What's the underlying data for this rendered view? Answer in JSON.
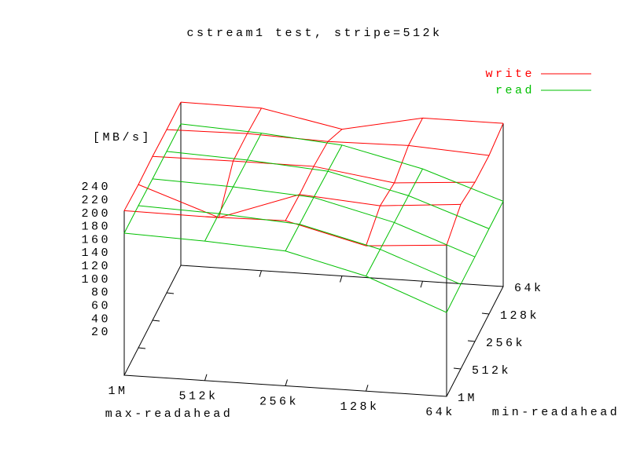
{
  "chart_data": {
    "type": "surface3d",
    "title": "cstream1 test, stripe=512k",
    "zlabel": "[MB/s]",
    "xlabel": "max-readahead",
    "ylabel": "min-readahead",
    "x": [
      "1M",
      "512k",
      "256k",
      "128k",
      "64k"
    ],
    "y": [
      "1M",
      "512k",
      "256k",
      "128k",
      "64k"
    ],
    "zticks": [
      20,
      40,
      60,
      80,
      100,
      120,
      140,
      160,
      180,
      200,
      220,
      240
    ],
    "legend": "top-right",
    "series": [
      {
        "name": "write",
        "color": "#ff0000",
        "values": [
          [
            204,
            203,
            205,
            175,
            184
          ],
          [
            202,
            160,
            203,
            194,
            204
          ],
          [
            203,
            204,
            204,
            187,
            196
          ],
          [
            202,
            204,
            200,
            202,
            195
          ],
          [
            202,
            201,
            177,
            202,
            202
          ]
        ]
      },
      {
        "name": "read",
        "color": "#00c000",
        "values": [
          [
            170,
            166,
            159,
            129,
            82
          ],
          [
            170,
            166,
            158,
            128,
            83
          ],
          [
            169,
            165,
            157,
            127,
            83
          ],
          [
            169,
            164,
            155,
            126,
            84
          ],
          [
            169,
            163,
            153,
            125,
            84
          ]
        ]
      }
    ]
  }
}
